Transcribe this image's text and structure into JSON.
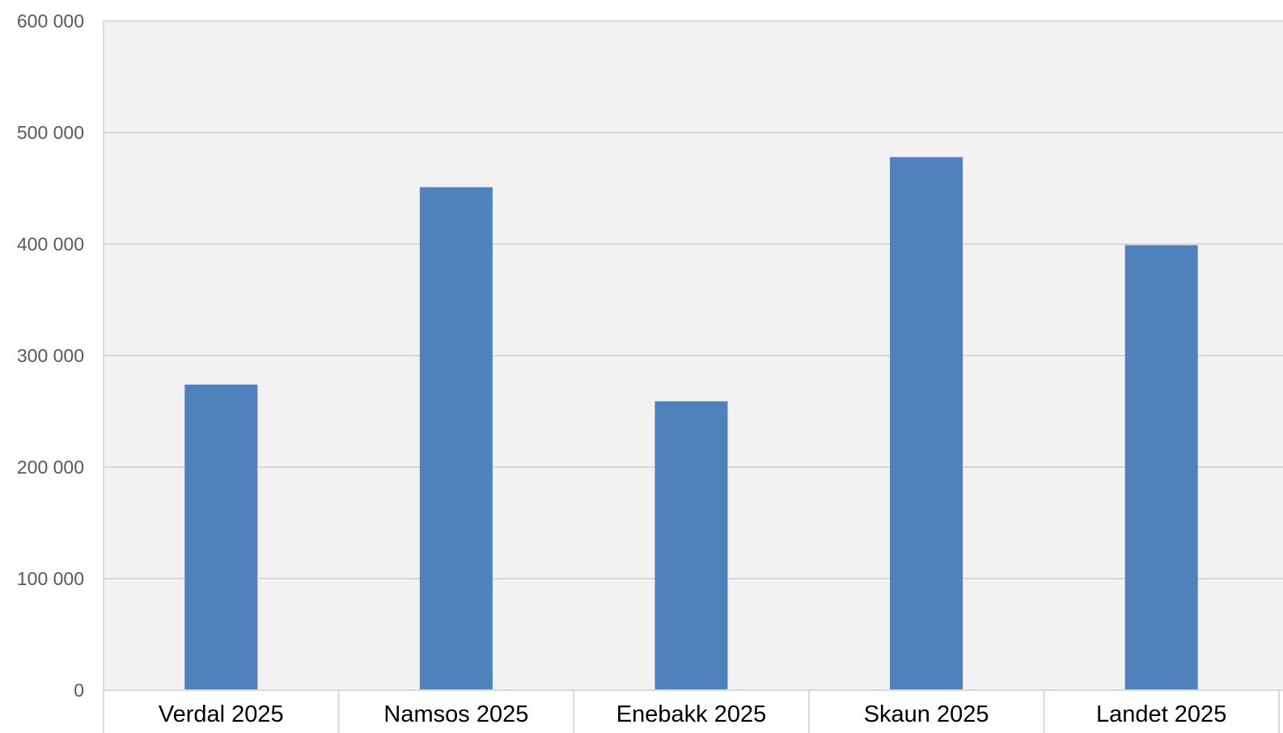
{
  "chart_data": {
    "type": "bar",
    "title": "",
    "xlabel": "",
    "ylabel": "",
    "categories": [
      "Verdal 2025",
      "Namsos 2025",
      "Enebakk 2025",
      "Skaun 2025",
      "Landet 2025"
    ],
    "values": [
      274000,
      451000,
      259000,
      478000,
      399000
    ],
    "ylim": [
      0,
      600000
    ],
    "yticks": [
      0,
      100000,
      200000,
      300000,
      400000,
      500000,
      600000
    ],
    "ytick_labels": [
      "0",
      "100 000",
      "200 000",
      "300 000",
      "400 000",
      "500 000",
      "600 000"
    ],
    "grid": true,
    "legend": "none",
    "colors": {
      "bar": "#4f81bd",
      "plot_background": "#f2f2f2",
      "gridline": "#d9d9d9",
      "axis_line": "#d9d9d9"
    }
  }
}
